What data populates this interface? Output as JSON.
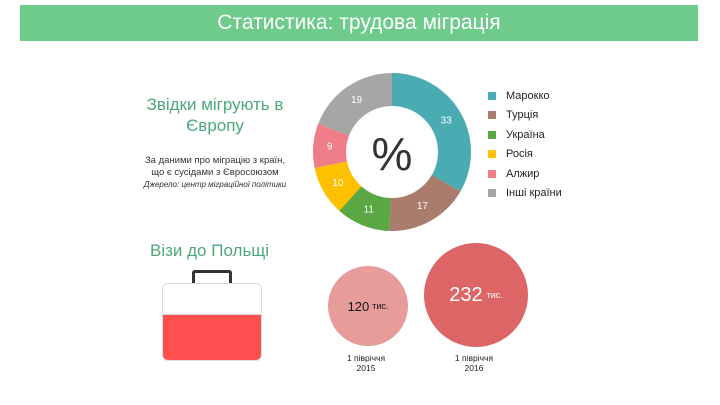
{
  "title": "Статистика: трудова міграція",
  "section1": {
    "heading_line1": "Звідки мігрують в",
    "heading_line2": "Європу",
    "subtext_line1": "За даними про міграцію з країн,",
    "subtext_line2": "що є сусідами з Євросоюзом",
    "source": "Джерело: центр міграційної політики"
  },
  "chart_data": [
    {
      "type": "pie",
      "center_label": "%",
      "categories": [
        "Марокко",
        "Турція",
        "Україна",
        "Росія",
        "Алжир",
        "Інші країни"
      ],
      "values": [
        33,
        17,
        11,
        10,
        9,
        19
      ],
      "legend": "right",
      "colors": [
        "#4aabb3",
        "#a97c6e",
        "#5aa843",
        "#ffc000",
        "#ef7d87",
        "#a6a6a6"
      ]
    }
  ],
  "section2": {
    "heading": "Візи до Польщі",
    "bubbles": [
      {
        "value": "120",
        "unit": "тис.",
        "period_line1": "1 півріччя",
        "period_line2": "2015",
        "color": "#e79c9a"
      },
      {
        "value": "232",
        "unit": "тис.",
        "period_line1": "1 півріччя",
        "period_line2": "2016",
        "color": "#dd6565"
      }
    ],
    "flag_colors": [
      "#ffffff",
      "#ff4f4f"
    ]
  }
}
